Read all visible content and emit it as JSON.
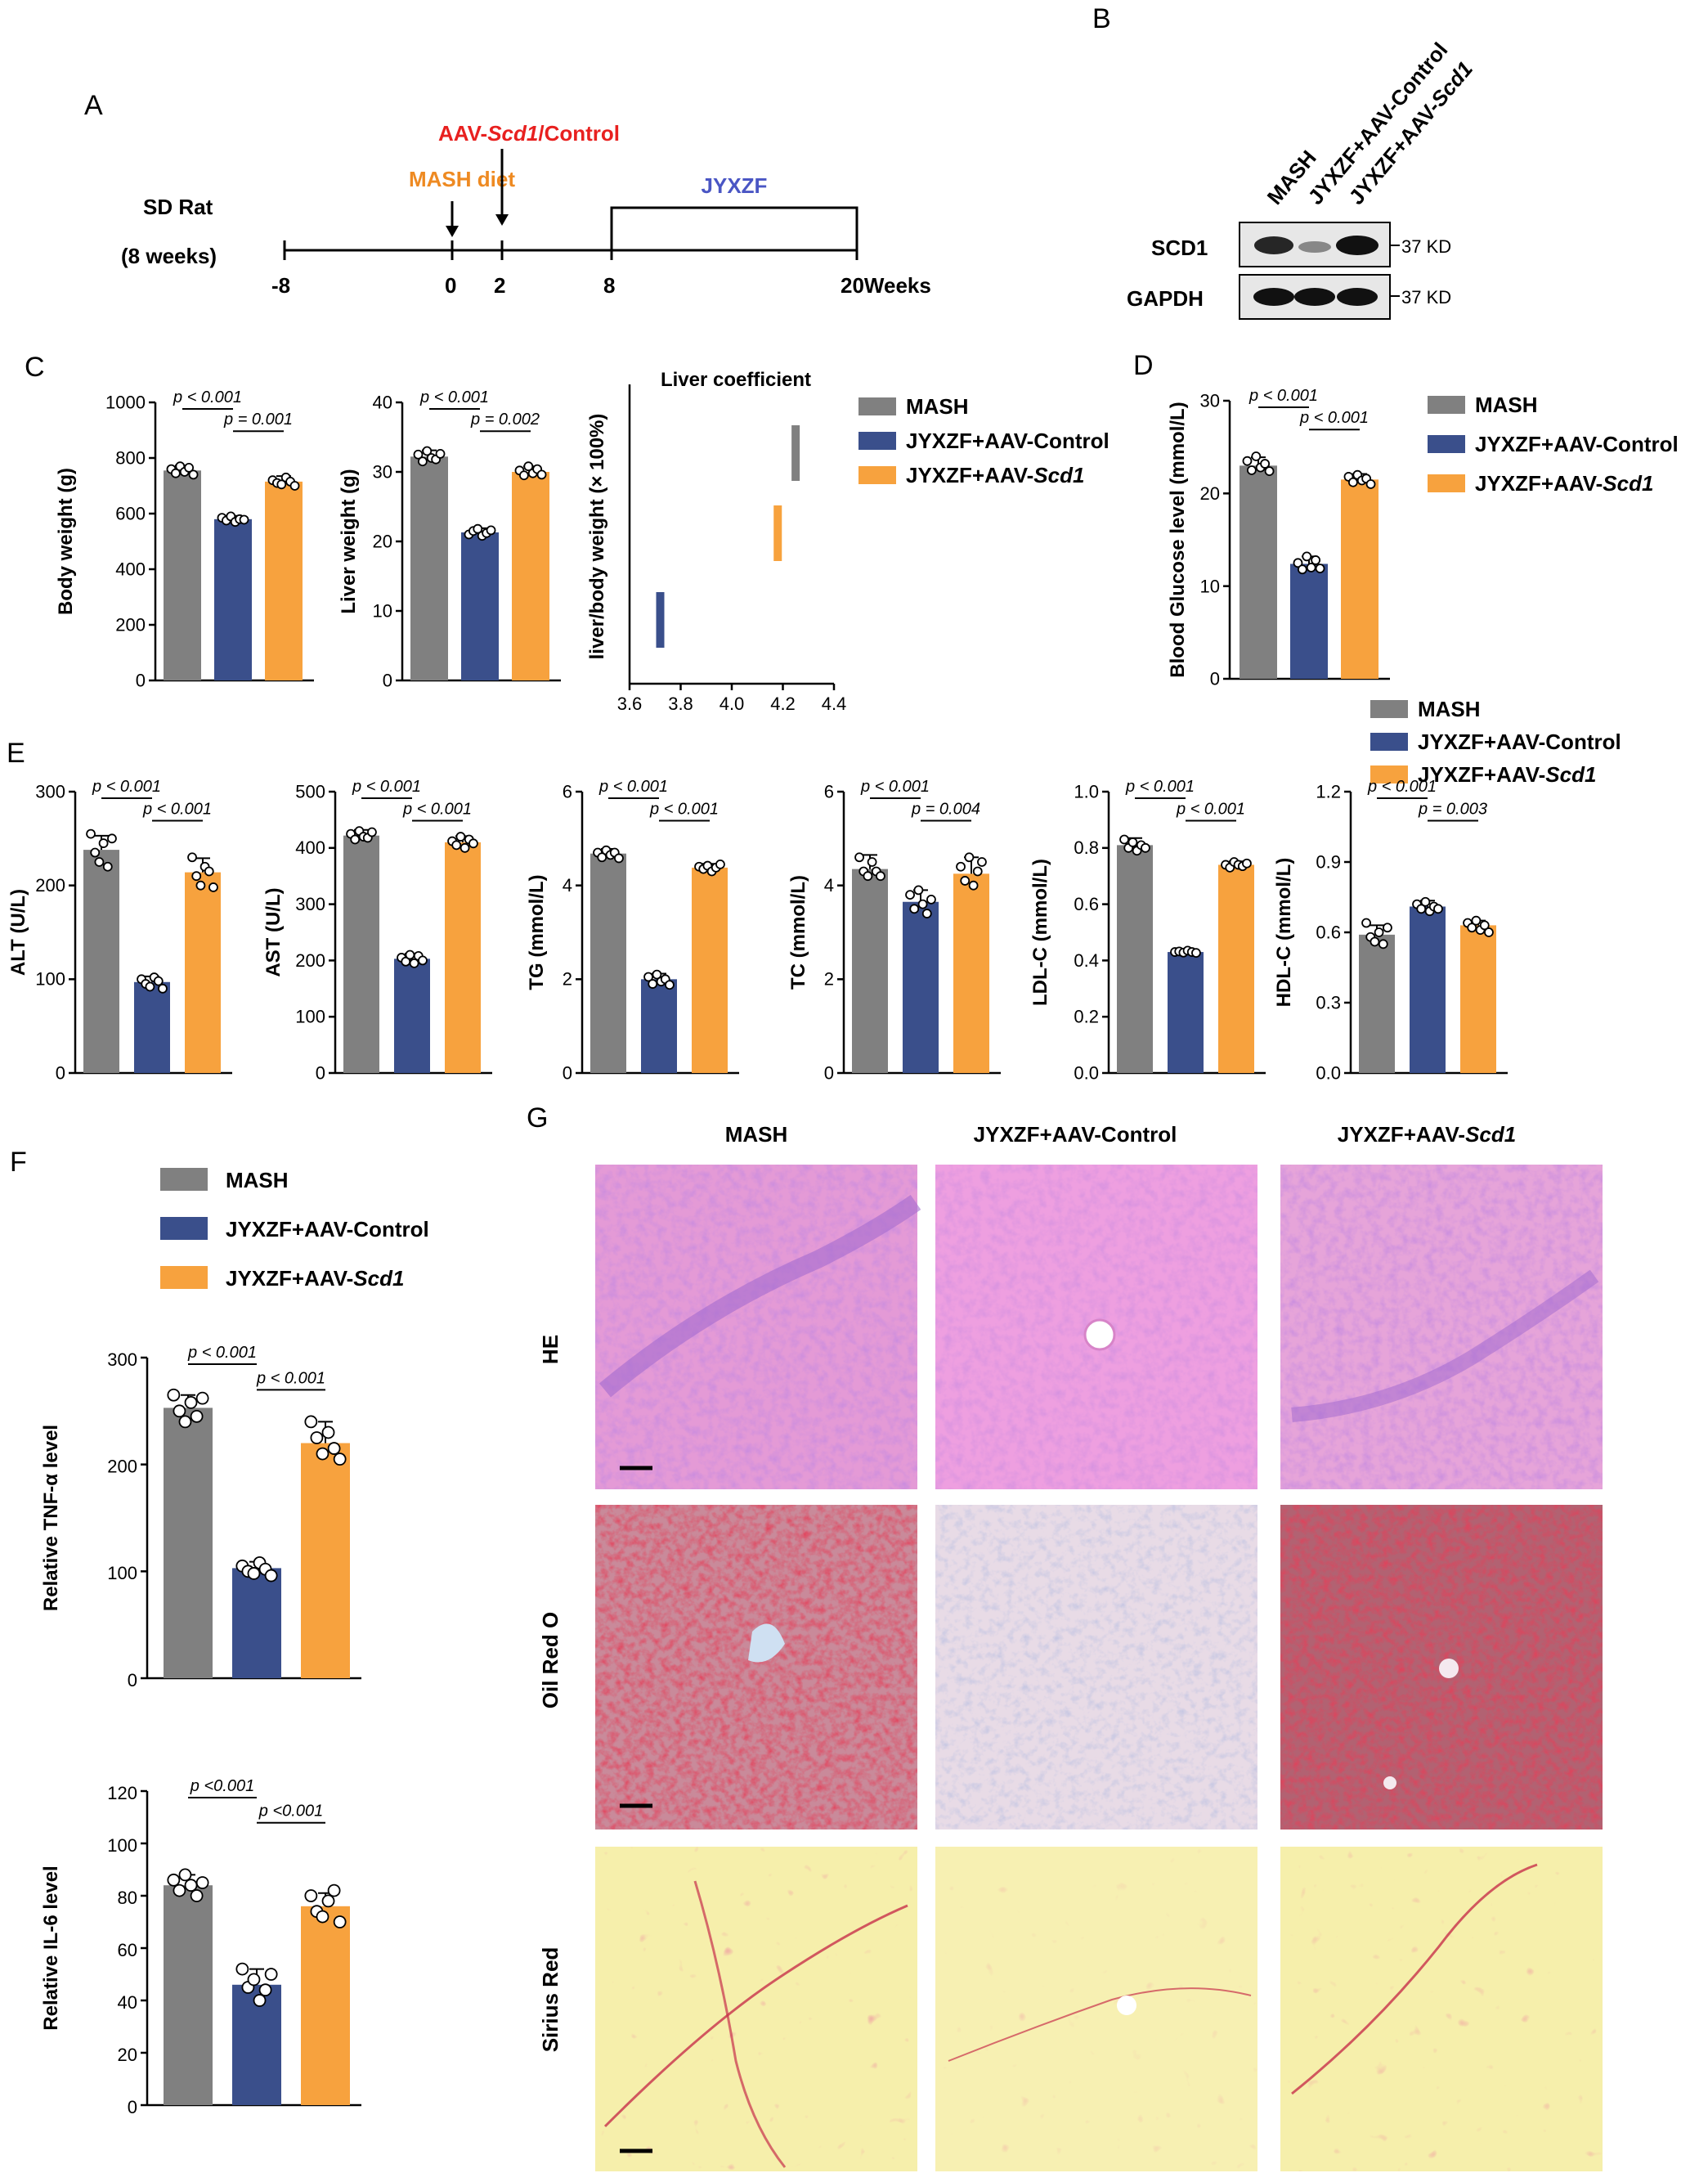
{
  "colors": {
    "mash": "#808080",
    "control": "#3a4f8b",
    "scd1": "#f7a23e",
    "timeline_red": "#e8201f",
    "timeline_orange": "#ee8a22",
    "timeline_blue": "#4a56c4"
  },
  "panel_labels": {
    "a": "A",
    "b": "B",
    "c": "C",
    "d": "D",
    "e": "E",
    "f": "F",
    "g": "G"
  },
  "panel_a": {
    "subject_line1": "SD Rat",
    "subject_line2": "(8 weeks)",
    "diet_label": "MASH diet",
    "aav_prefix": "AAV-",
    "aav_gene": "Scd1",
    "aav_suffix": "/Control",
    "treatment_label": "JYXZF",
    "ticks": [
      "-8",
      "0",
      "2",
      "8",
      "20Weeks"
    ]
  },
  "panel_b": {
    "lanes": [
      "MASH",
      "JYXZF+AAV-Control",
      "JYXZF+AAV-Scd1"
    ],
    "lane3_prefix": "JYXZF+AAV-",
    "lane3_gene": "Scd1",
    "rows": [
      {
        "protein": "SCD1",
        "marker": "37 KD",
        "band_intensity": [
          0.9,
          0.45,
          1.0
        ]
      },
      {
        "protein": "GAPDH",
        "marker": "37 KD",
        "band_intensity": [
          1.0,
          1.0,
          1.0
        ]
      }
    ]
  },
  "legend": {
    "mash": "MASH",
    "control": "JYXZF+AAV-Control",
    "scd1_prefix": "JYXZF+AAV-",
    "scd1_gene": "Scd1"
  },
  "panel_g": {
    "columns": {
      "mash": "MASH",
      "control": "JYXZF+AAV-Control",
      "scd1_prefix": "JYXZF+AAV-",
      "scd1_gene": "Scd1"
    },
    "rows": [
      "HE",
      "Oil Red O",
      "Sirius Red"
    ]
  },
  "chart_data": [
    {
      "id": "body",
      "type": "bar",
      "ylabel": "Body weight (g)",
      "ylim": [
        0,
        1000
      ],
      "yticks": [
        "0",
        "200",
        "400",
        "600",
        "800",
        "1000"
      ],
      "categories": [
        "MASH",
        "JYXZF+AAV-Control",
        "JYXZF+AAV-Scd1"
      ],
      "values": [
        755,
        580,
        715
      ],
      "errors": [
        18,
        12,
        20
      ],
      "points": [
        [
          760,
          745,
          770,
          750,
          765,
          740
        ],
        [
          585,
          575,
          590,
          570,
          580,
          578
        ],
        [
          720,
          710,
          705,
          730,
          715,
          700
        ]
      ],
      "comparisons": [
        {
          "label": "p < 0.001",
          "pair": [
            0,
            1
          ]
        },
        {
          "label": "p = 0.001",
          "pair": [
            1,
            2
          ]
        }
      ]
    },
    {
      "id": "liver",
      "type": "bar",
      "ylabel": "Liver weight (g)",
      "ylim": [
        0,
        40
      ],
      "yticks": [
        "0",
        "10",
        "20",
        "30",
        "40"
      ],
      "categories": [
        "MASH",
        "JYXZF+AAV-Control",
        "JYXZF+AAV-Scd1"
      ],
      "values": [
        32.2,
        21.3,
        30.0
      ],
      "errors": [
        0.9,
        0.6,
        0.8
      ],
      "points": [
        [
          32.5,
          31.5,
          33,
          32,
          31.8,
          32.6
        ],
        [
          21,
          21.5,
          21.8,
          20.8,
          21.2,
          21.6
        ],
        [
          30.2,
          29.5,
          30.8,
          29.8,
          30.4,
          29.6
        ]
      ],
      "comparisons": [
        {
          "label": "p < 0.001",
          "pair": [
            0,
            1
          ]
        },
        {
          "label": "p = 0.002",
          "pair": [
            1,
            2
          ]
        }
      ]
    },
    {
      "id": "coef",
      "type": "bar",
      "title": "Liver coefficient",
      "ylabel": "liver/body weight (× 100%)",
      "xlim": [
        3.6,
        4.4
      ],
      "xticks": [
        "3.6",
        "3.8",
        "4.0",
        "4.2",
        "4.4"
      ],
      "categories": [
        "MASH",
        "JYXZF+AAV-Scd1",
        "JYXZF+AAV-Control"
      ],
      "values": [
        4.25,
        4.18,
        3.72
      ]
    },
    {
      "id": "glucose",
      "type": "bar",
      "ylabel": "Blood Glucose level  (mmol/L)",
      "ylim": [
        0,
        30
      ],
      "yticks": [
        "0",
        "10",
        "20",
        "30"
      ],
      "categories": [
        "MASH",
        "JYXZF+AAV-Control",
        "JYXZF+AAV-Scd1"
      ],
      "values": [
        23.0,
        12.4,
        21.5
      ],
      "errors": [
        0.9,
        0.8,
        0.6
      ],
      "points": [
        [
          23.5,
          22.5,
          24,
          22.8,
          23.2,
          22.4
        ],
        [
          12.5,
          11.8,
          13.2,
          12.0,
          12.8,
          11.9
        ],
        [
          21.8,
          21.2,
          22.0,
          21.4,
          21.6,
          21.0
        ]
      ],
      "comparisons": [
        {
          "label": "p < 0.001",
          "pair": [
            0,
            1
          ]
        },
        {
          "label": "p < 0.001",
          "pair": [
            1,
            2
          ]
        }
      ]
    },
    {
      "id": "alt",
      "type": "bar",
      "ylabel": "ALT (U/L)",
      "ylim": [
        0,
        300
      ],
      "yticks": [
        "0",
        "100",
        "200",
        "300"
      ],
      "categories": [
        "MASH",
        "JYXZF+AAV-Control",
        "JYXZF+AAV-Scd1"
      ],
      "values": [
        238,
        97,
        214
      ],
      "errors": [
        15,
        6,
        15
      ],
      "points": [
        [
          255,
          235,
          225,
          245,
          220,
          250
        ],
        [
          100,
          95,
          92,
          102,
          98,
          90
        ],
        [
          230,
          210,
          200,
          220,
          215,
          198
        ]
      ],
      "comparisons": [
        {
          "label": "p < 0.001",
          "pair": [
            0,
            1
          ]
        },
        {
          "label": "p < 0.001",
          "pair": [
            1,
            2
          ]
        }
      ]
    },
    {
      "id": "ast",
      "type": "bar",
      "ylabel": "AST (U/L)",
      "ylim": [
        0,
        500
      ],
      "yticks": [
        "0",
        "100",
        "200",
        "300",
        "400",
        "500"
      ],
      "categories": [
        "MASH",
        "JYXZF+AAV-Control",
        "JYXZF+AAV-Scd1"
      ],
      "values": [
        422,
        203,
        410
      ],
      "errors": [
        10,
        9,
        11
      ],
      "points": [
        [
          425,
          415,
          430,
          420,
          418,
          428
        ],
        [
          205,
          198,
          210,
          195,
          208,
          200
        ],
        [
          412,
          405,
          420,
          400,
          415,
          408
        ]
      ],
      "comparisons": [
        {
          "label": "p < 0.001",
          "pair": [
            0,
            1
          ]
        },
        {
          "label": "p < 0.001",
          "pair": [
            1,
            2
          ]
        }
      ]
    },
    {
      "id": "tg",
      "type": "bar",
      "ylabel": "TG (mmol/L)",
      "ylim": [
        0,
        6
      ],
      "yticks": [
        "0",
        "2",
        "4",
        "6"
      ],
      "categories": [
        "MASH",
        "JYXZF+AAV-Control",
        "JYXZF+AAV-Scd1"
      ],
      "values": [
        4.68,
        2.0,
        4.38
      ],
      "errors": [
        0.1,
        0.12,
        0.08
      ],
      "points": [
        [
          4.7,
          4.6,
          4.75,
          4.65,
          4.7,
          4.58
        ],
        [
          2.05,
          1.9,
          2.1,
          1.95,
          2.0,
          1.88
        ],
        [
          4.4,
          4.35,
          4.42,
          4.3,
          4.38,
          4.45
        ]
      ],
      "comparisons": [
        {
          "label": "p < 0.001",
          "pair": [
            0,
            1
          ]
        },
        {
          "label": "p < 0.001",
          "pair": [
            1,
            2
          ]
        }
      ]
    },
    {
      "id": "tc",
      "type": "bar",
      "ylabel": "TC (mmol/L)",
      "ylim": [
        0,
        6
      ],
      "yticks": [
        "0",
        "2",
        "4",
        "6"
      ],
      "categories": [
        "MASH",
        "JYXZF+AAV-Control",
        "JYXZF+AAV-Scd1"
      ],
      "values": [
        4.35,
        3.65,
        4.25
      ],
      "errors": [
        0.3,
        0.25,
        0.35
      ],
      "points": [
        [
          4.6,
          4.3,
          4.2,
          4.5,
          4.3,
          4.2
        ],
        [
          3.8,
          3.5,
          3.9,
          3.6,
          3.4,
          3.7
        ],
        [
          4.4,
          4.1,
          4.6,
          4.0,
          4.3,
          4.5
        ]
      ],
      "comparisons": [
        {
          "label": "p < 0.001",
          "pair": [
            0,
            1
          ]
        },
        {
          "label": "p = 0.004",
          "pair": [
            1,
            2
          ]
        }
      ]
    },
    {
      "id": "ldl",
      "type": "bar",
      "ylabel": "LDL-C (mmol/L)",
      "ylim": [
        0,
        1.0
      ],
      "yticks": [
        "0.0",
        "0.2",
        "0.4",
        "0.6",
        "0.8",
        "1.0"
      ],
      "categories": [
        "MASH",
        "JYXZF+AAV-Control",
        "JYXZF+AAV-Scd1"
      ],
      "values": [
        0.81,
        0.43,
        0.74
      ],
      "errors": [
        0.025,
        0.008,
        0.012
      ],
      "points": [
        [
          0.83,
          0.8,
          0.82,
          0.79,
          0.81,
          0.8
        ],
        [
          0.43,
          0.432,
          0.428,
          0.435,
          0.43,
          0.427
        ],
        [
          0.74,
          0.73,
          0.75,
          0.74,
          0.735,
          0.745
        ]
      ],
      "comparisons": [
        {
          "label": "p < 0.001",
          "pair": [
            0,
            1
          ]
        },
        {
          "label": "p < 0.001",
          "pair": [
            1,
            2
          ]
        }
      ]
    },
    {
      "id": "hdl",
      "type": "bar",
      "ylabel": "HDL-C (mmol/L)",
      "ylim": [
        0,
        1.2
      ],
      "yticks": [
        "0.0",
        "0.3",
        "0.6",
        "0.9",
        "1.2"
      ],
      "categories": [
        "MASH",
        "JYXZF+AAV-Control",
        "JYXZF+AAV-Scd1"
      ],
      "values": [
        0.59,
        0.71,
        0.63
      ],
      "errors": [
        0.04,
        0.025,
        0.02
      ],
      "points": [
        [
          0.64,
          0.58,
          0.56,
          0.6,
          0.55,
          0.62
        ],
        [
          0.72,
          0.7,
          0.73,
          0.69,
          0.71,
          0.7
        ],
        [
          0.64,
          0.62,
          0.65,
          0.61,
          0.63,
          0.6
        ]
      ],
      "comparisons": [
        {
          "label": "p < 0.001",
          "pair": [
            0,
            1
          ]
        },
        {
          "label": "p = 0.003",
          "pair": [
            1,
            2
          ]
        }
      ]
    },
    {
      "id": "tnf",
      "type": "bar",
      "ylabel": "Relative TNF-α level",
      "ylim": [
        0,
        300
      ],
      "yticks": [
        "0",
        "100",
        "200",
        "300"
      ],
      "categories": [
        "MASH",
        "JYXZF+AAV-Control",
        "JYXZF+AAV-Scd1"
      ],
      "values": [
        253,
        103,
        220
      ],
      "errors": [
        12,
        6,
        20
      ],
      "points": [
        [
          265,
          250,
          240,
          258,
          245,
          262
        ],
        [
          105,
          100,
          98,
          108,
          102,
          96
        ],
        [
          240,
          225,
          210,
          230,
          215,
          205
        ]
      ],
      "comparisons": [
        {
          "label": "p < 0.001",
          "pair": [
            0,
            1
          ]
        },
        {
          "label": "p < 0.001",
          "pair": [
            1,
            2
          ]
        }
      ]
    },
    {
      "id": "il6",
      "type": "bar",
      "ylabel": "Relative IL-6 level",
      "ylim": [
        0,
        120
      ],
      "yticks": [
        "0",
        "20",
        "40",
        "60",
        "80",
        "100",
        "120"
      ],
      "categories": [
        "MASH",
        "JYXZF+AAV-Control",
        "JYXZF+AAV-Scd1"
      ],
      "values": [
        84,
        46,
        76
      ],
      "errors": [
        4,
        6,
        5
      ],
      "points": [
        [
          86,
          82,
          88,
          84,
          80,
          85
        ],
        [
          52,
          45,
          48,
          40,
          44,
          50
        ],
        [
          80,
          74,
          72,
          78,
          82,
          70
        ]
      ],
      "comparisons": [
        {
          "label": "p <0.001",
          "pair": [
            0,
            1
          ]
        },
        {
          "label": "p <0.001",
          "pair": [
            1,
            2
          ]
        }
      ]
    }
  ]
}
